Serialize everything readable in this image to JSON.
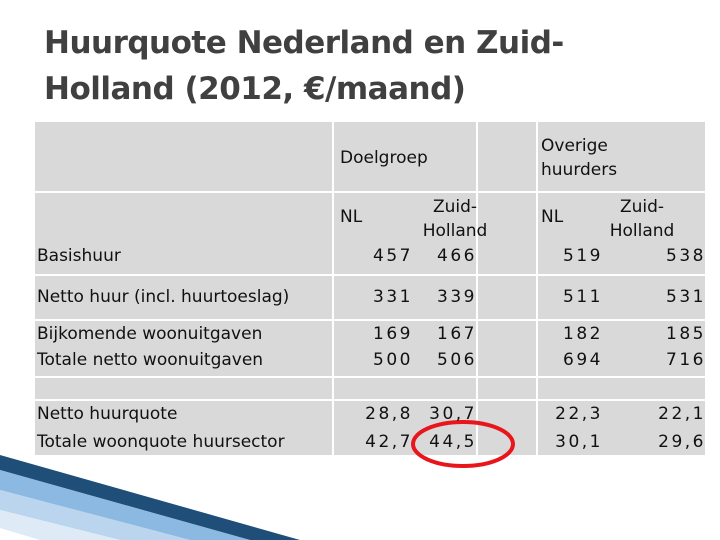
{
  "title": {
    "lines": [
      "Huurquote Nederland en Zuid-",
      "Holland (2012, €/maand)"
    ]
  },
  "table": {
    "groups": [
      "Doelgroep",
      "Overige huurders"
    ],
    "subheaders": [
      "NL",
      "Zuid-Holland",
      "NL",
      "Zuid-Holland"
    ],
    "rows": [
      [
        "Basishuur",
        "457",
        "466",
        "519",
        "538"
      ],
      [
        "Netto huur (incl. huurtoeslag)",
        "331",
        "339",
        "511",
        "531"
      ],
      [
        "Bijkomende woonuitgaven",
        "169",
        "167",
        "182",
        "185"
      ],
      [
        "Totale netto woonuitgaven",
        "500",
        "506",
        "694",
        "716"
      ],
      [
        "Netto huurquote",
        "28,8",
        "30,7",
        "22,3",
        "22,1"
      ],
      [
        "Totale woonquote huursector",
        "42,7",
        "44,5",
        "30,1",
        "29,6"
      ]
    ]
  }
}
